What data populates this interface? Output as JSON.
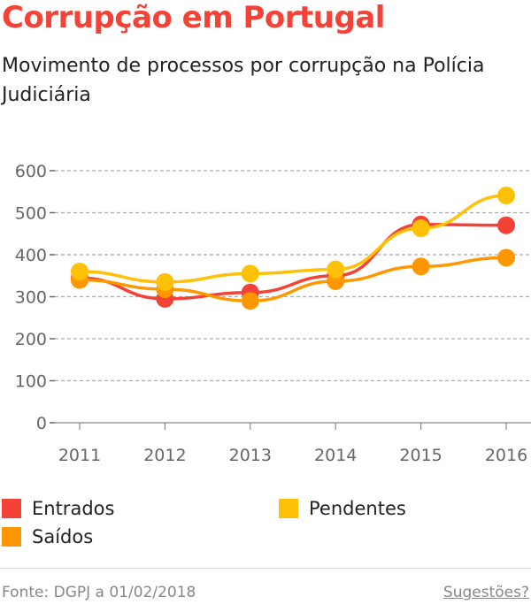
{
  "title": "Corrupção em Portugal",
  "subtitle": "Movimento de processos por corrupção na Polícia Judiciária",
  "source": "Fonte: DGPJ a 01/02/2018",
  "suggestions": "Sugestões?",
  "chart_data": {
    "type": "line",
    "x": [
      "2011",
      "2012",
      "2013",
      "2014",
      "2015",
      "2016"
    ],
    "ylim": [
      0,
      600
    ],
    "yticks": [
      "0",
      "100",
      "200",
      "300",
      "400",
      "500",
      "600"
    ],
    "grid": true,
    "legend_placement": "bottom",
    "series": [
      {
        "name": "Entrados",
        "color": "#f44336",
        "values": [
          345,
          295,
          310,
          350,
          472,
          470
        ]
      },
      {
        "name": "Saídos",
        "color": "#ff9800",
        "values": [
          340,
          318,
          290,
          337,
          372,
          393
        ]
      },
      {
        "name": "Pendentes",
        "color": "#ffc107",
        "values": [
          360,
          335,
          355,
          365,
          463,
          541
        ]
      }
    ]
  }
}
